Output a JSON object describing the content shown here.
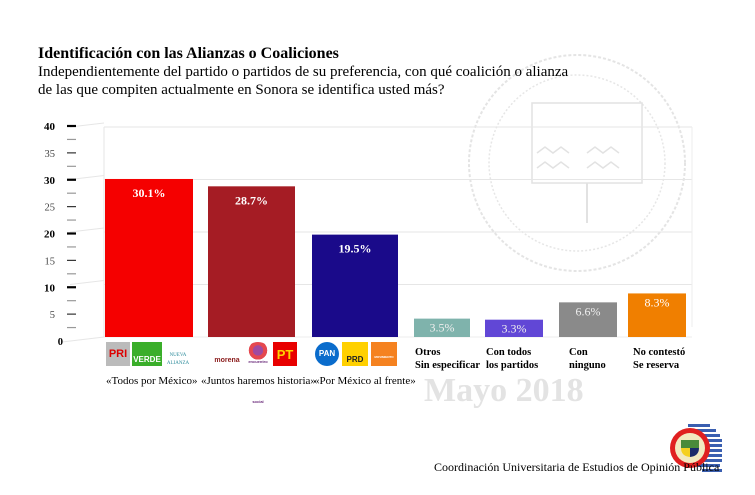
{
  "header": {
    "title": "Identificación con las Alianzas o Coaliciones",
    "question": "Independientemente del partido o partidos de su preferencia, con qué coalición o alianza de las que compiten actualmente en Sonora se identifica usted más?"
  },
  "watermark": {
    "date": "Mayo 2018"
  },
  "footer": {
    "organization": "Coordinación Universitaria de Estudios de Opinión Pública"
  },
  "coalitions": [
    {
      "name": "«Todos por México»",
      "parties": [
        "PRI",
        "VERDE",
        "NUEVA ALIANZA"
      ]
    },
    {
      "name": "«Juntos haremos historia»",
      "parties": [
        "morena",
        "encuentro social",
        "PT"
      ]
    },
    {
      "name": "«Por México al frente»",
      "parties": [
        "PAN",
        "PRD",
        "MOVIMIENTO CIUDADANO"
      ]
    }
  ],
  "other_labels": [
    {
      "line1": "Otros",
      "line2": "Sin especificar"
    },
    {
      "line1": "Con todos",
      "line2": "los partidos"
    },
    {
      "line1": "Con",
      "line2": "ninguno"
    },
    {
      "line1": "No contestó",
      "line2": "Se reserva"
    }
  ],
  "chart_data": {
    "type": "bar",
    "title": "Identificación con las Alianzas o Coaliciones",
    "categories": [
      "«Todos por México»",
      "«Juntos haremos historia»",
      "«Por México al frente»",
      "Otros Sin especificar",
      "Con todos los partidos",
      "Con ninguno",
      "No contestó Se reserva"
    ],
    "values": [
      30.1,
      28.7,
      19.5,
      3.5,
      3.3,
      6.6,
      8.3
    ],
    "value_labels": [
      "30.1%",
      "28.7%",
      "19.5%",
      "3.5%",
      "3.3%",
      "6.6%",
      "8.3%"
    ],
    "colors": [
      "#f50000",
      "#a51c24",
      "#1a0a8a",
      "#7fb3ac",
      "#6147d6",
      "#8a8a8a",
      "#f07f00"
    ],
    "ylim": [
      0,
      40
    ],
    "yticks": [
      "0",
      "5",
      "10",
      "15",
      "20",
      "25",
      "30",
      "35",
      "40"
    ],
    "major_ticks": [
      "10",
      "20",
      "30",
      "40"
    ],
    "grid": true,
    "xlabel": "",
    "ylabel": ""
  }
}
